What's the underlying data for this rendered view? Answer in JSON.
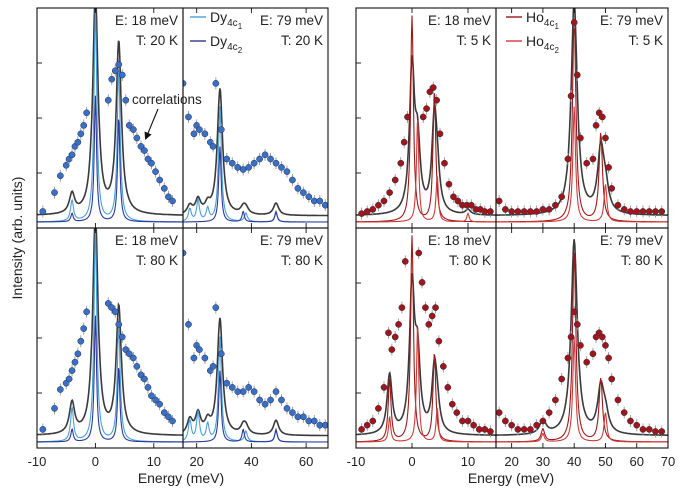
{
  "figure": {
    "ylabel": "Intensity (arb. units)",
    "xlabel_left": "Energy (meV)",
    "xlabel_right": "Energy (meV)",
    "annotation": "correlations"
  },
  "colors": {
    "dy_c1": "#4a9fd8",
    "dy_c2": "#2b3a9a",
    "ho_c1": "#9a1a1a",
    "ho_c2": "#d23a3a",
    "fit": "#3a3a3a",
    "dy_marker": "#3a6fc4",
    "ho_marker": "#a31515",
    "errorbar": "#999999"
  },
  "legends": {
    "dy": [
      {
        "main": "Dy",
        "sub1": "4c",
        "sub2": "1"
      },
      {
        "main": "Dy",
        "sub1": "4c",
        "sub2": "2"
      }
    ],
    "ho": [
      {
        "main": "Ho",
        "sub1": "4c",
        "sub2": "1"
      },
      {
        "main": "Ho",
        "sub1": "4c",
        "sub2": "2"
      }
    ]
  },
  "axes": {
    "left_lo": {
      "xmin": -10,
      "xmax": 15,
      "ticks": [
        -10,
        0,
        10
      ],
      "labels": [
        "-10",
        "0",
        "10"
      ]
    },
    "left_hi": {
      "xmin": 15,
      "xmax": 68,
      "ticks": [
        20,
        40,
        60
      ],
      "labels": [
        "20",
        "40",
        "60"
      ]
    },
    "right_lo": {
      "xmin": -10,
      "xmax": 15,
      "ticks": [
        -10,
        0,
        10
      ],
      "labels": [
        "-10",
        "0",
        "10"
      ]
    },
    "right_hi": {
      "xmin": 15,
      "xmax": 70,
      "ticks": [
        20,
        30,
        40,
        50,
        60,
        70
      ],
      "labels": [
        "20",
        "30",
        "40",
        "50",
        "60",
        "70"
      ]
    }
  },
  "panel_labels": {
    "dy_20K_lo": {
      "e": "E: 18 meV",
      "t": "T: 20 K"
    },
    "dy_20K_hi": {
      "e": "E: 79 meV",
      "t": "T: 20 K"
    },
    "dy_80K_lo": {
      "e": "E: 18 meV",
      "t": "T: 80 K"
    },
    "dy_80K_hi": {
      "e": "E: 79 meV",
      "t": "T: 80 K"
    },
    "ho_5K_lo": {
      "e": "E: 18 meV",
      "t": "T: 5 K"
    },
    "ho_5K_hi": {
      "e": "E: 79 meV",
      "t": "T: 5 K"
    },
    "ho_80K_lo": {
      "e": "E: 18 meV",
      "t": "T: 80 K"
    },
    "ho_80K_hi": {
      "e": "E: 79 meV",
      "t": "T: 80 K"
    }
  },
  "chart_data": [
    {
      "type": "scatter",
      "x": [
        -9,
        -7,
        -6,
        -5,
        -4.5,
        -4,
        -3.5,
        -3,
        -2.5,
        -2,
        -1.5,
        2.2,
        2.8,
        3.4,
        4.0,
        4.6,
        5.2,
        5.8,
        6.5,
        7.1,
        7.8,
        8.4,
        9.0,
        9.6,
        10.3,
        11,
        11.8,
        12.5,
        13.2
      ],
      "series": [
        {
          "name": "data",
          "values": [
            0.05,
            0.14,
            0.22,
            0.27,
            0.3,
            0.32,
            0.36,
            0.38,
            0.42,
            0.46,
            0.52,
            0.58,
            0.68,
            0.72,
            0.75,
            0.7,
            0.58,
            0.46,
            0.44,
            0.4,
            0.36,
            0.34,
            0.3,
            0.28,
            0.24,
            0.2,
            0.16,
            0.12,
            0.1
          ]
        },
        {
          "name": "Dy4c1",
          "x_peaks": [
            -4,
            0,
            4
          ],
          "heights": [
            0.1,
            1.0,
            0.74
          ]
        },
        {
          "name": "Dy4c2",
          "x_peaks": [
            -4,
            0,
            4
          ],
          "heights": [
            0.04,
            0.6,
            0.5
          ]
        }
      ],
      "xlim": [
        -10,
        15
      ]
    },
    {
      "type": "scatter",
      "x": [
        15,
        17,
        19,
        20,
        21,
        23,
        25,
        26,
        27,
        29,
        31,
        33,
        35,
        37,
        39,
        41,
        43,
        45,
        47,
        49,
        51,
        53,
        55,
        57,
        59,
        61,
        63,
        65,
        67
      ],
      "series": [
        {
          "name": "data",
          "values": [
            0.66,
            0.5,
            0.42,
            0.46,
            0.44,
            0.42,
            0.38,
            0.36,
            0.66,
            0.44,
            0.3,
            0.28,
            0.26,
            0.25,
            0.26,
            0.28,
            0.3,
            0.32,
            0.3,
            0.28,
            0.26,
            0.24,
            0.2,
            0.16,
            0.14,
            0.12,
            0.1,
            0.1,
            0.08
          ]
        },
        {
          "name": "Dy4c1",
          "x_peaks": [
            17.5,
            20.5,
            24,
            28.5,
            38,
            49
          ],
          "heights": [
            0.06,
            0.1,
            0.06,
            0.55,
            0.04,
            0.04
          ]
        },
        {
          "name": "Dy4c2",
          "x_peaks": [
            28.5,
            37,
            49
          ],
          "heights": [
            0.36,
            0.05,
            0.05
          ]
        }
      ],
      "xlim": [
        15,
        68
      ]
    },
    {
      "type": "scatter",
      "x": [
        -9,
        -7,
        -6,
        -5,
        -4.5,
        -4,
        -3.5,
        -3,
        -2.5,
        -2,
        -1.5,
        2.2,
        2.8,
        3.4,
        4.0,
        4.6,
        5.2,
        5.8,
        6.5,
        7.1,
        7.8,
        8.4,
        9.0,
        9.6,
        10.3,
        11,
        11.8,
        12.5,
        13.2
      ],
      "series": [
        {
          "name": "data",
          "values": [
            0.06,
            0.16,
            0.25,
            0.28,
            0.3,
            0.34,
            0.38,
            0.42,
            0.48,
            0.54,
            0.62,
            0.66,
            0.64,
            0.62,
            0.56,
            0.5,
            0.44,
            0.42,
            0.4,
            0.36,
            0.32,
            0.3,
            0.26,
            0.22,
            0.2,
            0.18,
            0.14,
            0.12,
            0.1
          ]
        },
        {
          "name": "Dy4c1",
          "x_peaks": [
            -4,
            0,
            4
          ],
          "heights": [
            0.16,
            1.0,
            0.56
          ]
        },
        {
          "name": "Dy4c2",
          "x_peaks": [
            -4,
            0,
            4
          ],
          "heights": [
            0.06,
            0.6,
            0.36
          ]
        }
      ],
      "xlim": [
        -10,
        15
      ]
    },
    {
      "type": "scatter",
      "x": [
        15,
        17,
        19,
        20,
        21,
        23,
        25,
        26,
        27,
        29,
        31,
        33,
        35,
        37,
        39,
        41,
        43,
        45,
        47,
        49,
        51,
        53,
        55,
        57,
        59,
        61,
        63,
        65,
        67
      ],
      "series": [
        {
          "name": "data",
          "values": [
            0.9,
            0.56,
            0.4,
            0.46,
            0.44,
            0.4,
            0.34,
            0.36,
            0.64,
            0.42,
            0.28,
            0.26,
            0.24,
            0.24,
            0.26,
            0.24,
            0.2,
            0.18,
            0.2,
            0.24,
            0.2,
            0.16,
            0.14,
            0.12,
            0.12,
            0.1,
            0.1,
            0.08,
            0.08
          ]
        },
        {
          "name": "Dy4c1",
          "x_peaks": [
            17.5,
            20.5,
            24,
            28.5,
            38,
            49
          ],
          "heights": [
            0.1,
            0.14,
            0.08,
            0.5,
            0.05,
            0.05
          ]
        },
        {
          "name": "Dy4c2",
          "x_peaks": [
            28.5,
            37,
            49
          ],
          "heights": [
            0.34,
            0.06,
            0.06
          ]
        }
      ],
      "xlim": [
        15,
        68
      ]
    },
    {
      "type": "scatter",
      "x": [
        -9,
        -8,
        -7,
        -6,
        -5,
        -4,
        -3,
        -2,
        -1.4,
        -0.8,
        2,
        2.6,
        3.2,
        3.8,
        4.4,
        5,
        5.8,
        6.6,
        7.4,
        8.2,
        9,
        9.8,
        10.6,
        11.4,
        12.2,
        13,
        14
      ],
      "series": [
        {
          "name": "data",
          "values": [
            0.04,
            0.05,
            0.06,
            0.08,
            0.1,
            0.14,
            0.2,
            0.28,
            0.38,
            0.5,
            0.5,
            0.54,
            0.62,
            0.64,
            0.58,
            0.42,
            0.28,
            0.18,
            0.12,
            0.1,
            0.08,
            0.08,
            0.08,
            0.06,
            0.06,
            0.05,
            0.05
          ]
        },
        {
          "name": "Ho4c1",
          "x_peaks": [
            0,
            4
          ],
          "heights": [
            0.98,
            0.62
          ]
        },
        {
          "name": "Ho4c2",
          "x_peaks": [
            1,
            4.5,
            10
          ],
          "heights": [
            0.5,
            0.22,
            0.04
          ]
        }
      ],
      "xlim": [
        -10,
        15
      ]
    },
    {
      "type": "scatter",
      "x": [
        16,
        18,
        20,
        22,
        24,
        26,
        28,
        30,
        32,
        34,
        36,
        38,
        39,
        40,
        41,
        42,
        44,
        46,
        47,
        48,
        49,
        50,
        51,
        52,
        54,
        56,
        58,
        60,
        62,
        64,
        66,
        68
      ],
      "series": [
        {
          "name": "data",
          "values": [
            0.1,
            0.06,
            0.05,
            0.05,
            0.05,
            0.05,
            0.05,
            0.06,
            0.06,
            0.08,
            0.12,
            0.3,
            0.6,
            0.95,
            0.7,
            0.4,
            0.28,
            0.3,
            0.46,
            0.52,
            0.5,
            0.4,
            0.26,
            0.16,
            0.08,
            0.06,
            0.05,
            0.05,
            0.05,
            0.05,
            0.05,
            0.05
          ]
        },
        {
          "name": "Ho4c1",
          "x_peaks": [
            40,
            48.5
          ],
          "heights": [
            0.98,
            0.42
          ]
        },
        {
          "name": "Ho4c2",
          "x_peaks": [
            40,
            50
          ],
          "heights": [
            0.55,
            0.18
          ]
        }
      ],
      "xlim": [
        15,
        70
      ]
    },
    {
      "type": "scatter",
      "x": [
        -9,
        -8,
        -7,
        -6,
        -5,
        -4.2,
        -3.6,
        -3,
        -2.4,
        -1.8,
        -1.2,
        1.2,
        1.8,
        2.4,
        3,
        3.6,
        4.2,
        4.8,
        5.6,
        6.4,
        7.2,
        8,
        9,
        10,
        11,
        12,
        13,
        14
      ],
      "series": [
        {
          "name": "data",
          "values": [
            0.06,
            0.08,
            0.1,
            0.16,
            0.26,
            0.52,
            0.44,
            0.5,
            0.56,
            0.64,
            0.86,
            0.9,
            0.76,
            0.64,
            0.56,
            0.6,
            0.64,
            0.48,
            0.36,
            0.26,
            0.18,
            0.14,
            0.1,
            0.1,
            0.08,
            0.06,
            0.06,
            0.05
          ]
        },
        {
          "name": "Ho4c1",
          "x_peaks": [
            -4,
            0,
            4
          ],
          "heights": [
            0.3,
            0.98,
            0.42
          ]
        },
        {
          "name": "Ho4c2",
          "x_peaks": [
            -4,
            1,
            4.5
          ],
          "heights": [
            0.12,
            0.56,
            0.16
          ]
        }
      ],
      "xlim": [
        -10,
        15
      ]
    },
    {
      "type": "scatter",
      "x": [
        16,
        18,
        20,
        22,
        24,
        26,
        28,
        30,
        32,
        34,
        36,
        38,
        39,
        40,
        41,
        42,
        44,
        46,
        47,
        48,
        49,
        50,
        51,
        52,
        54,
        56,
        58,
        60,
        62,
        64,
        66,
        68
      ],
      "series": [
        {
          "name": "data",
          "values": [
            0.14,
            0.1,
            0.08,
            0.06,
            0.06,
            0.06,
            0.08,
            0.1,
            0.14,
            0.2,
            0.3,
            0.4,
            0.5,
            0.62,
            0.56,
            0.46,
            0.38,
            0.42,
            0.5,
            0.52,
            0.5,
            0.46,
            0.4,
            0.3,
            0.2,
            0.14,
            0.1,
            0.08,
            0.06,
            0.06,
            0.05,
            0.05
          ]
        },
        {
          "name": "Ho4c1",
          "x_peaks": [
            30,
            40,
            48.5
          ],
          "heights": [
            0.06,
            0.9,
            0.3
          ]
        },
        {
          "name": "Ho4c2",
          "x_peaks": [
            30,
            40,
            50
          ],
          "heights": [
            0.04,
            0.5,
            0.14
          ]
        }
      ],
      "xlim": [
        15,
        70
      ]
    }
  ]
}
